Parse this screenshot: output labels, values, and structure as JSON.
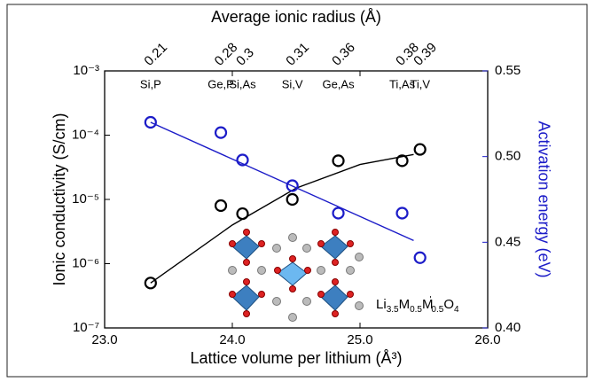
{
  "chart_data": {
    "type": "scatter",
    "top_label": "Average ionic radius (Å)",
    "x_label": "Lattice volume per lithium (Å³)",
    "y_label": "Ionic conductivity (S/cm)",
    "y2_label": "Activation energy (eV)",
    "x": [
      23.36,
      23.91,
      24.08,
      24.47,
      24.83,
      25.33,
      25.47
    ],
    "top_categories": [
      "Si,P",
      "Ge,P",
      "Si,As",
      "Si,V",
      "Ge,As",
      "Ti,As",
      "Ti,V"
    ],
    "top_values": [
      0.21,
      0.28,
      0.3,
      0.31,
      0.36,
      0.38,
      0.39
    ],
    "xlim": [
      23.0,
      26.0
    ],
    "xticks": [
      {
        "value": 23,
        "label": "23.0"
      },
      {
        "value": 24,
        "label": "24.0"
      },
      {
        "value": 25,
        "label": "25.0"
      },
      {
        "value": 26,
        "label": "26.0"
      }
    ],
    "yscale": "log",
    "ylim": [
      1e-07,
      0.001
    ],
    "yticks": [
      {
        "value": 1e-07,
        "label": "10⁻⁷"
      },
      {
        "value": 1e-06,
        "label": "10⁻⁶"
      },
      {
        "value": 1e-05,
        "label": "10⁻⁵"
      },
      {
        "value": 0.0001,
        "label": "10⁻⁴"
      },
      {
        "value": 0.001,
        "label": "10⁻³"
      }
    ],
    "y2lim": [
      0.4,
      0.55
    ],
    "y2ticks": [
      {
        "value": 0.4,
        "label": "0.40"
      },
      {
        "value": 0.45,
        "label": "0.45"
      },
      {
        "value": 0.5,
        "label": "0.50"
      },
      {
        "value": 0.55,
        "label": "0.55"
      }
    ],
    "y2_color": "#1c1cc8",
    "series": [
      {
        "color": "#000000",
        "values": [
          5e-07,
          8e-06,
          6e-06,
          1e-05,
          4e-05,
          4e-05,
          6e-05
        ]
      },
      {
        "color": "#1c1cc8",
        "axis": "y2",
        "values": [
          0.52,
          0.514,
          0.498,
          0.483,
          0.467,
          0.467,
          0.441
        ]
      }
    ],
    "fits": [
      {
        "color": "#000000",
        "x": [
          23.36,
          24.0,
          24.5,
          25.0,
          25.42
        ],
        "values": [
          5e-07,
          4e-06,
          1.5e-05,
          3.5e-05,
          5e-05
        ]
      },
      {
        "color": "#1c1cc8",
        "axis": "y2",
        "x": [
          23.36,
          25.42
        ],
        "values": [
          0.52,
          0.451
        ]
      }
    ],
    "formula": [
      {
        "text": "Li",
        "style": "normal"
      },
      {
        "text": "3.5",
        "style": "sub"
      },
      {
        "text": "M",
        "style": "normal"
      },
      {
        "text": "0.5",
        "style": "sub"
      },
      {
        "text": "M",
        "style": "normal"
      },
      {
        "text": "'",
        "style": "super"
      },
      {
        "text": "0.5",
        "style": "sub"
      },
      {
        "text": "O",
        "style": "normal"
      },
      {
        "text": "4",
        "style": "sub"
      }
    ]
  }
}
